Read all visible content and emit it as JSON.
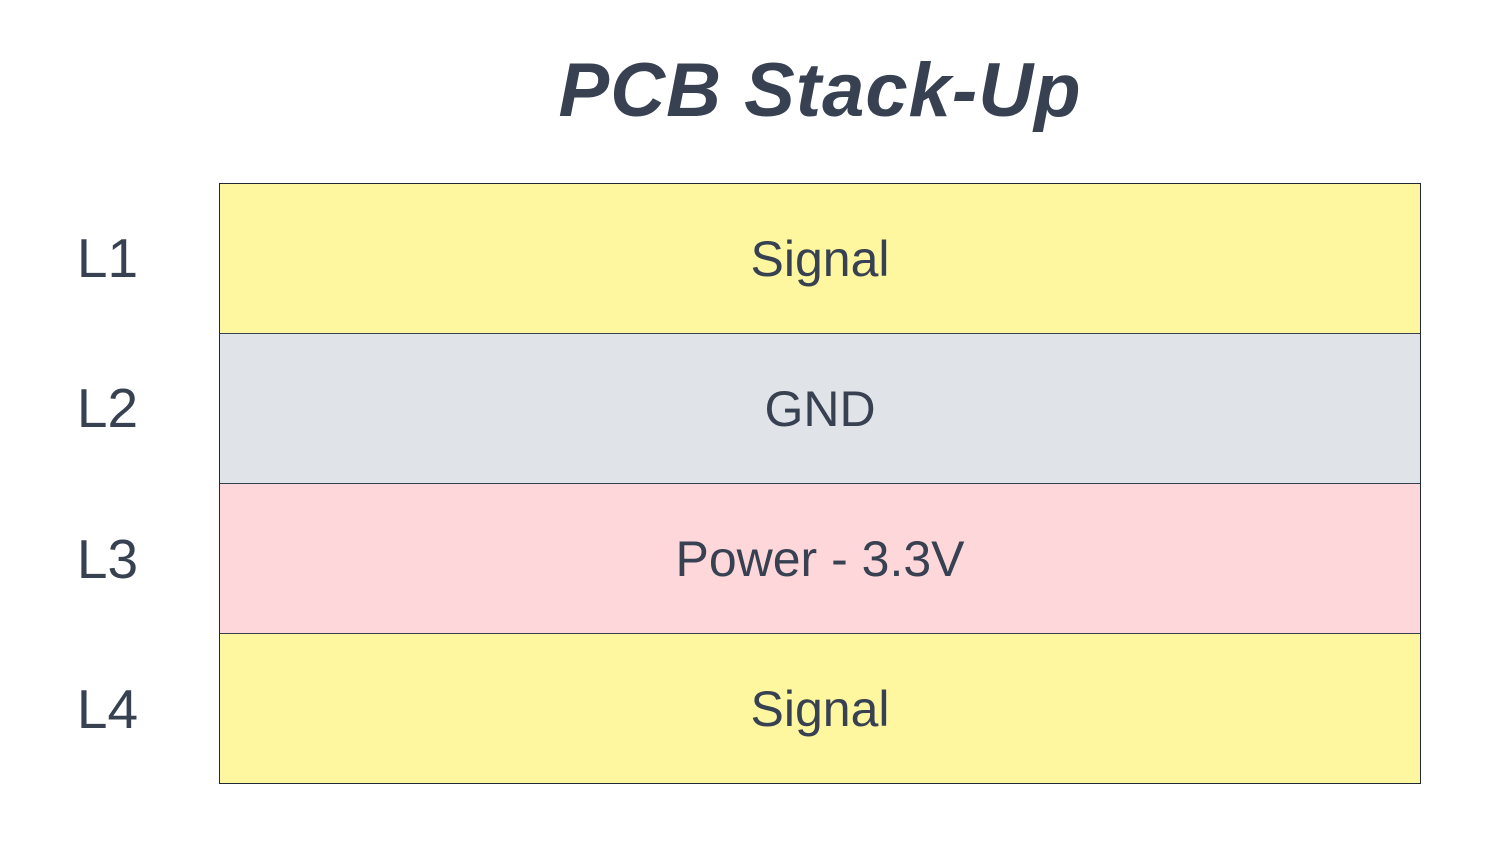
{
  "title": "PCB Stack-Up",
  "layers": [
    {
      "id": "L1",
      "name": "Signal",
      "color": "#FEF7A0"
    },
    {
      "id": "L2",
      "name": "GND",
      "color": "#E0E3E8"
    },
    {
      "id": "L3",
      "name": "Power - 3.3V",
      "color": "#FED7DA"
    },
    {
      "id": "L4",
      "name": "Signal",
      "color": "#FEF7A0"
    }
  ]
}
